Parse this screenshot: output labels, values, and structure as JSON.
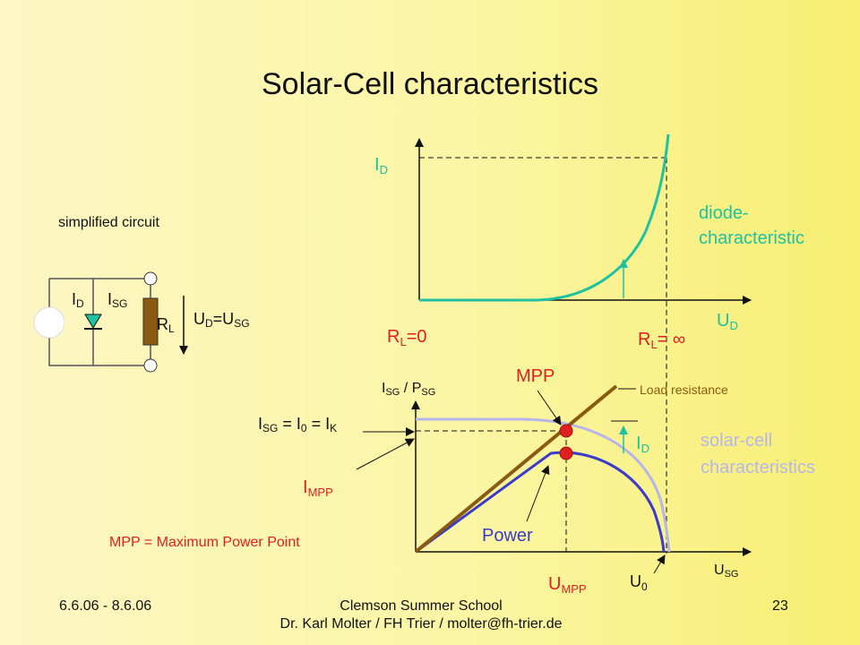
{
  "title": "Solar-Cell characteristics",
  "circuit": {
    "caption": "simplified circuit",
    "id_label": "I",
    "id_sub": "D",
    "isg_label": "I",
    "isg_sub": "SG",
    "rl_label": "R",
    "rl_sub": "L",
    "ud_u1": "U",
    "ud_sub1": "D",
    "ud_eq": "=U",
    "ud_sub2": "SG"
  },
  "diode_plot": {
    "y_label": "I",
    "y_sub": "D",
    "x_label": "U",
    "x_sub": "D",
    "curve_label_1": "diode-",
    "curve_label_2": "characteristic",
    "rl0_main": "R",
    "rl0_sub": "L",
    "rl0_eq": "=0",
    "rlinf_main": "R",
    "rlinf_sub": "L",
    "rlinf_eq": "= ∞"
  },
  "solar_plot": {
    "y_label": "I",
    "y_sub": "SG",
    "y_slash": " / P",
    "y_sub2": "SG",
    "x_label": "U",
    "x_sub": "SG",
    "isc_i1": "I",
    "isc_s1": "SG",
    "isc_eq1": " = I",
    "isc_s2": "0",
    "isc_eq2": " = I",
    "isc_s3": "K",
    "impp_main": "I",
    "impp_sub": "MPP",
    "umpp_main": "U",
    "umpp_sub": "MPP",
    "u0_main": "U",
    "u0_sub": "0",
    "id_main": "I",
    "id_sub": "D",
    "mpp_label": "MPP",
    "load_label": "Load resistance",
    "power_label": "Power",
    "sc_label_1": "solar-cell",
    "sc_label_2": "characteristics",
    "mpp_def": "MPP = Maximum Power Point"
  },
  "footer": {
    "date": "6.6.06 - 8.6.06",
    "line1": "Clemson Summer School",
    "line2": "Dr. Karl Molter / FH Trier / molter@fh-trier.de",
    "page": "23"
  },
  "colors": {
    "teal": "#1fc1a0",
    "red": "#e02020",
    "blue": "#3a3acb",
    "brown": "#8a5a12",
    "lavender": "#b6b6ea"
  }
}
